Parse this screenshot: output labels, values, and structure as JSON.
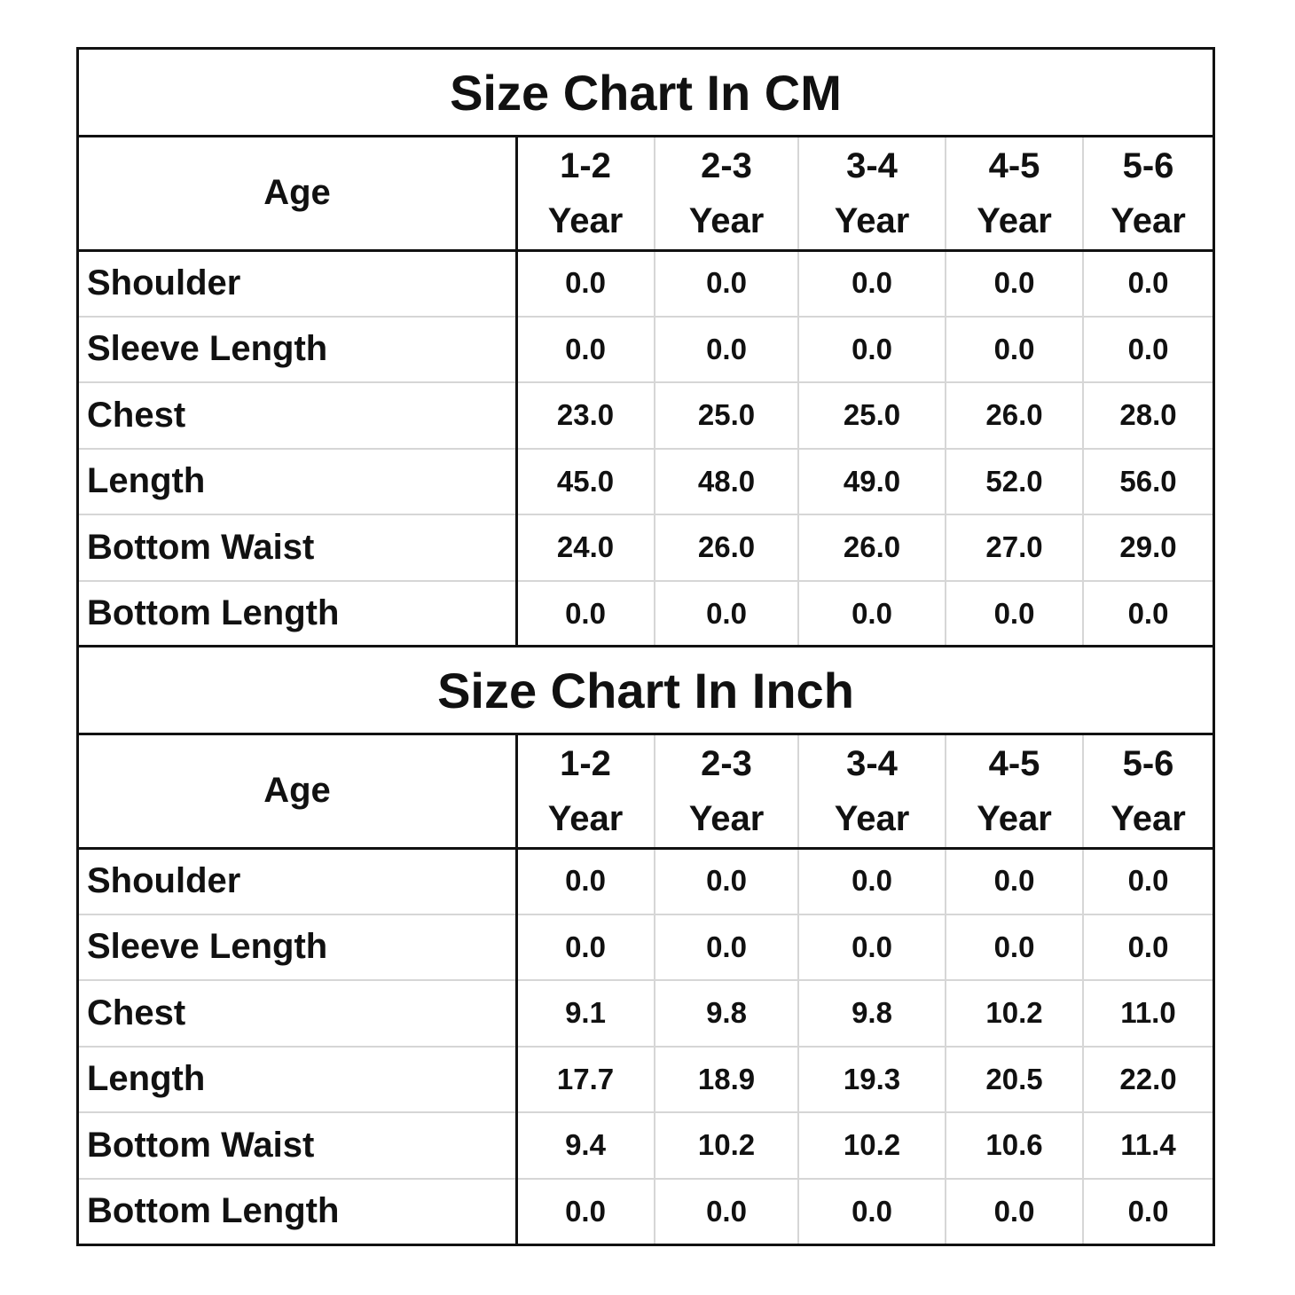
{
  "tables": [
    {
      "title": "Size Chart In CM",
      "header_label": "Age",
      "columns": [
        "1-2 Year",
        "2-3 Year",
        "3-4 Year",
        "4-5 Year",
        "5-6 Year"
      ],
      "rows": [
        {
          "label": "Shoulder",
          "values": [
            "0.0",
            "0.0",
            "0.0",
            "0.0",
            "0.0"
          ]
        },
        {
          "label": "Sleeve Length",
          "values": [
            "0.0",
            "0.0",
            "0.0",
            "0.0",
            "0.0"
          ]
        },
        {
          "label": "Chest",
          "values": [
            "23.0",
            "25.0",
            "25.0",
            "26.0",
            "28.0"
          ]
        },
        {
          "label": "Length",
          "values": [
            "45.0",
            "48.0",
            "49.0",
            "52.0",
            "56.0"
          ]
        },
        {
          "label": "Bottom Waist",
          "values": [
            "24.0",
            "26.0",
            "26.0",
            "27.0",
            "29.0"
          ]
        },
        {
          "label": "Bottom Length",
          "values": [
            "0.0",
            "0.0",
            "0.0",
            "0.0",
            "0.0"
          ]
        }
      ]
    },
    {
      "title": "Size Chart In Inch",
      "header_label": "Age",
      "columns": [
        "1-2 Year",
        "2-3 Year",
        "3-4 Year",
        "4-5 Year",
        "5-6 Year"
      ],
      "rows": [
        {
          "label": "Shoulder",
          "values": [
            "0.0",
            "0.0",
            "0.0",
            "0.0",
            "0.0"
          ]
        },
        {
          "label": "Sleeve Length",
          "values": [
            "0.0",
            "0.0",
            "0.0",
            "0.0",
            "0.0"
          ]
        },
        {
          "label": "Chest",
          "values": [
            "9.1",
            "9.8",
            "9.8",
            "10.2",
            "11.0"
          ]
        },
        {
          "label": "Length",
          "values": [
            "17.7",
            "18.9",
            "19.3",
            "20.5",
            "22.0"
          ]
        },
        {
          "label": "Bottom Waist",
          "values": [
            "9.4",
            "10.2",
            "10.2",
            "10.6",
            "11.4"
          ]
        },
        {
          "label": "Bottom Length",
          "values": [
            "0.0",
            "0.0",
            "0.0",
            "0.0",
            "0.0"
          ]
        }
      ]
    }
  ]
}
